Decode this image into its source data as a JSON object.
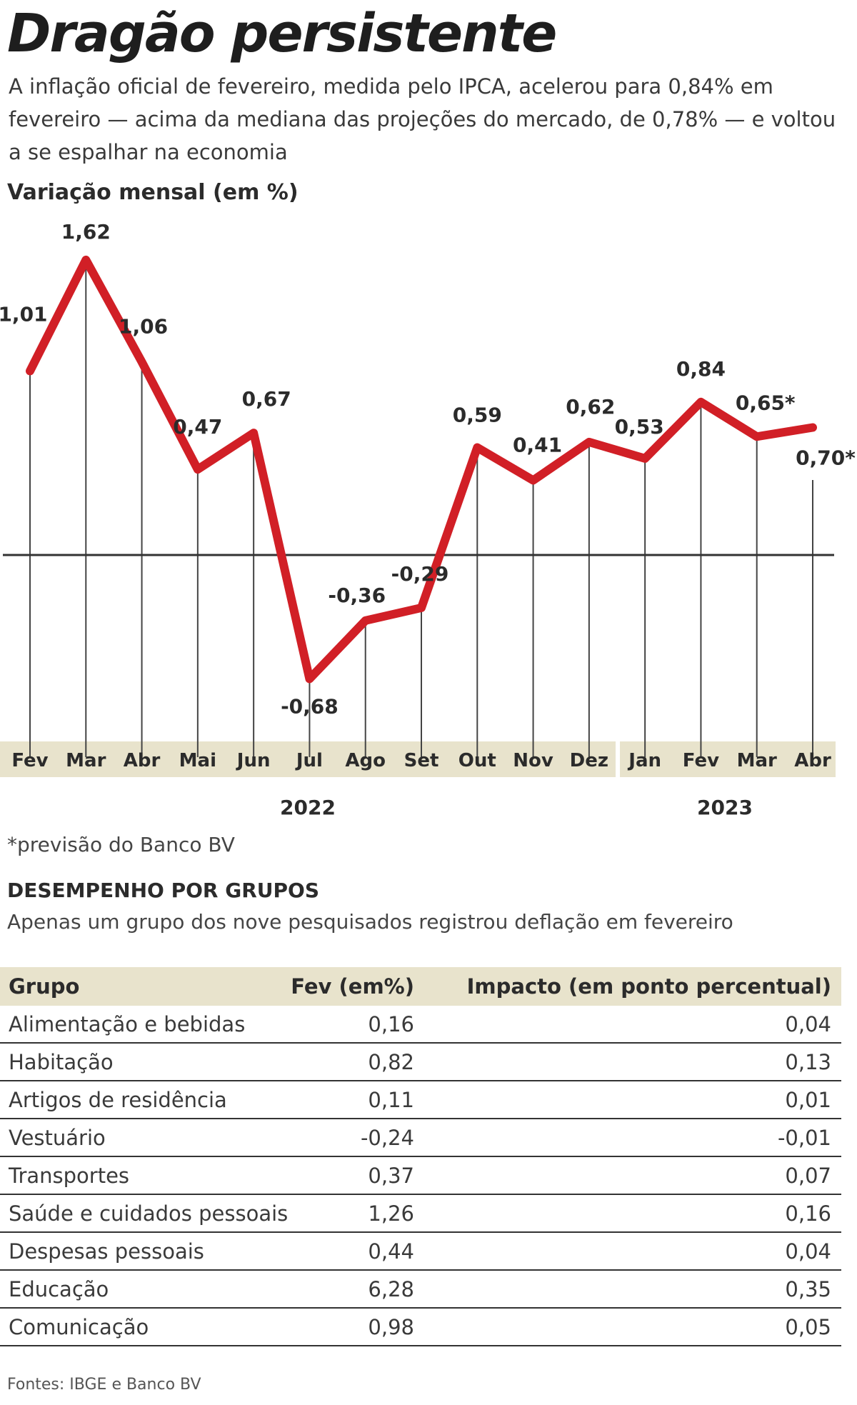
{
  "header": {
    "title": "Dragão persistente",
    "subtitle": "A inflação oficial de fevereiro, medida pelo IPCA, acelerou para 0,84% em fevereiro — acima da mediana das projeções do mercado, de 0,78% — e voltou a se espalhar na economia"
  },
  "colors": {
    "line": "#d11f26",
    "axis_band": "#e8e3cc",
    "stem": "#444444"
  },
  "chart_data": {
    "type": "line",
    "title": "Variação mensal (em %)",
    "categories": [
      "Fev",
      "Mar",
      "Abr",
      "Mai",
      "Jun",
      "Jul",
      "Ago",
      "Set",
      "Out",
      "Nov",
      "Dez",
      "Jan",
      "Fev",
      "Mar",
      "Abr"
    ],
    "values": [
      1.01,
      1.62,
      1.06,
      0.47,
      0.67,
      -0.68,
      -0.36,
      -0.29,
      0.59,
      0.41,
      0.62,
      0.53,
      0.84,
      0.65,
      0.7
    ],
    "labels": [
      "1,01",
      "1,62",
      "1,06",
      "0,47",
      "0,67",
      "-0,68",
      "-0,36",
      "-0,29",
      "0,59",
      "0,41",
      "0,62",
      "0,53",
      "0,84",
      "0,65*",
      "0,70*"
    ],
    "years": [
      "2022",
      "2023"
    ],
    "footnote": "*previsão do Banco BV",
    "zero_line": true
  },
  "table": {
    "heading": "DESEMPENHO POR GRUPOS",
    "subheading": "Apenas um grupo dos nove pesquisados registrou deflação em fevereiro",
    "columns": [
      "Grupo",
      "Fev (em%)",
      "Impacto (em ponto percentual)"
    ],
    "rows": [
      [
        "Alimentação e bebidas",
        "0,16",
        "0,04"
      ],
      [
        "Habitação",
        "0,82",
        "0,13"
      ],
      [
        "Artigos de residência",
        "0,11",
        "0,01"
      ],
      [
        "Vestuário",
        "-0,24",
        "-0,01"
      ],
      [
        "Transportes",
        "0,37",
        "0,07"
      ],
      [
        "Saúde e cuidados pessoais",
        "1,26",
        "0,16"
      ],
      [
        "Despesas pessoais",
        "0,44",
        "0,04"
      ],
      [
        "Educação",
        "6,28",
        "0,35"
      ],
      [
        "Comunicação",
        "0,98",
        "0,05"
      ]
    ]
  },
  "sources": "Fontes: IBGE e Banco BV"
}
